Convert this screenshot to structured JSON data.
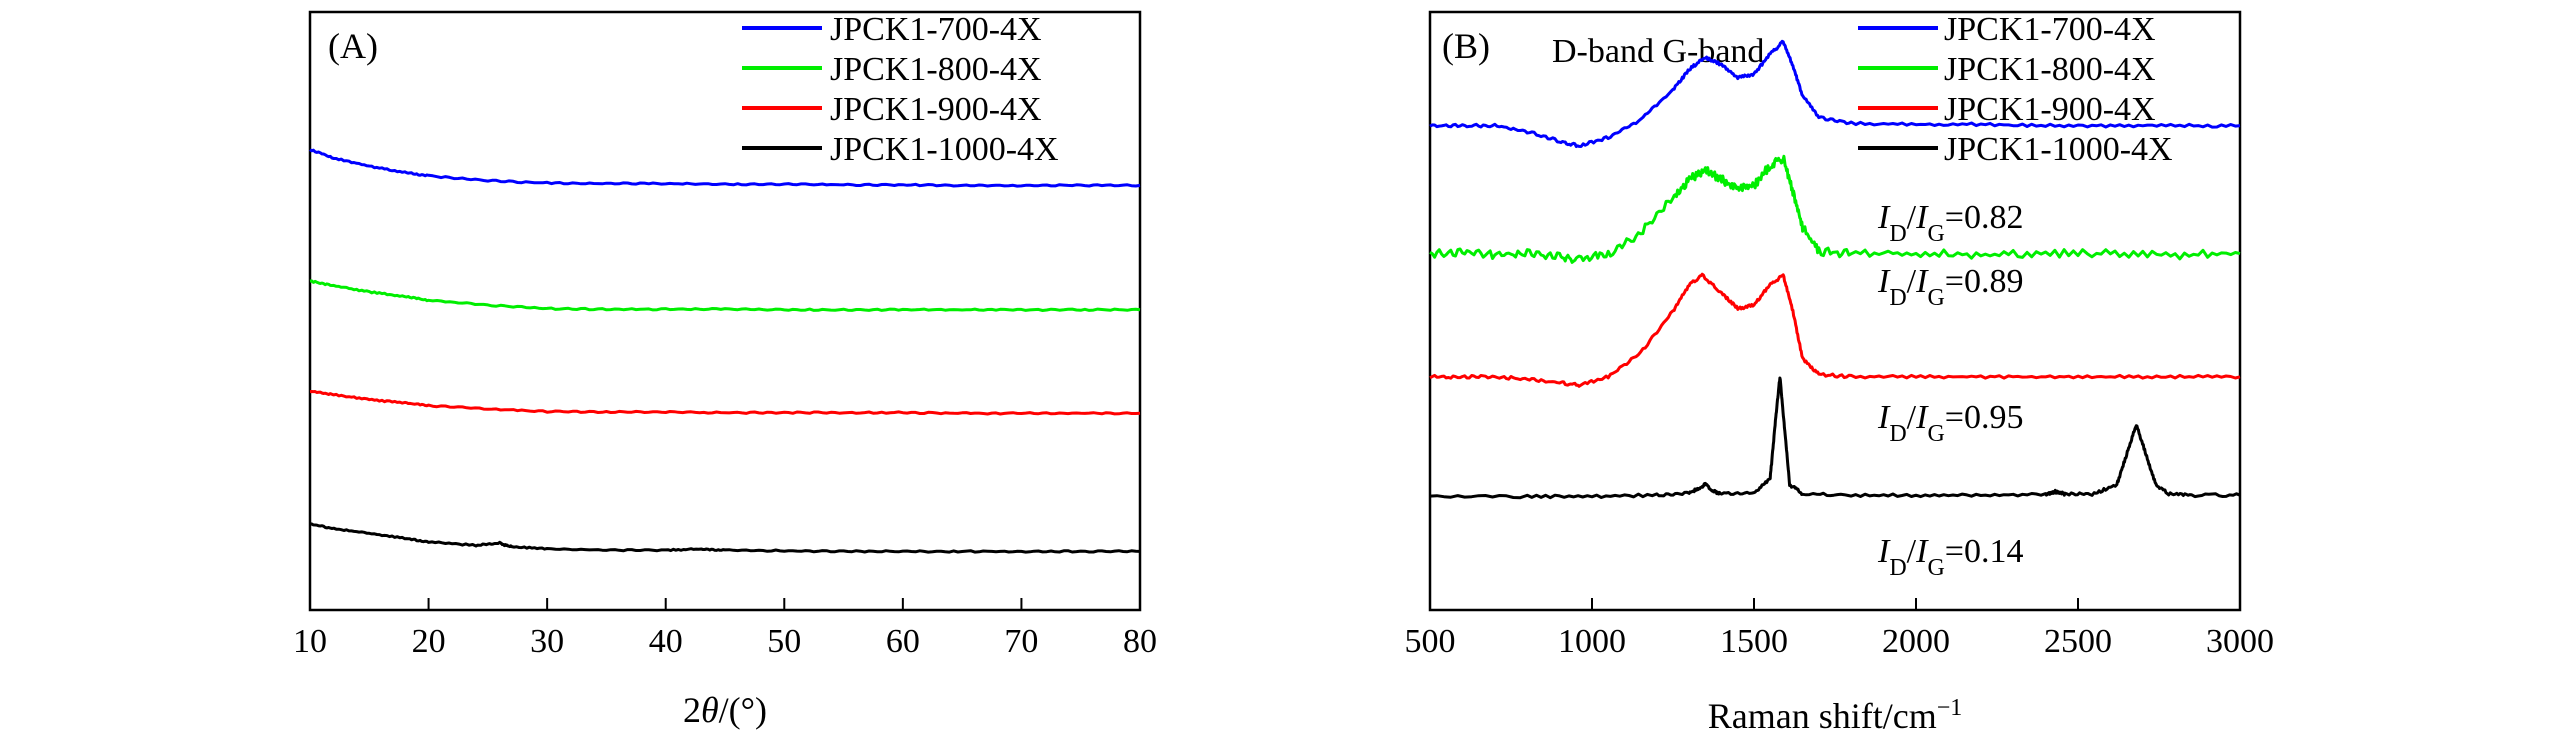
{
  "chart_data": [
    {
      "type": "line",
      "panel_label": "(A)",
      "xlabel_parts": [
        "2",
        "θ",
        "/(°)"
      ],
      "xlim": [
        10,
        80
      ],
      "xticks": [
        10,
        20,
        30,
        40,
        50,
        60,
        70,
        80
      ],
      "legend_position": "top-right",
      "series": [
        {
          "name": "JPCK1-700-4X",
          "color": "#0000ff",
          "x": [
            10,
            12,
            15,
            18,
            20,
            25,
            30,
            35,
            40,
            45,
            50,
            55,
            60,
            65,
            70,
            75,
            80
          ],
          "y": [
            3.85,
            3.78,
            3.71,
            3.66,
            3.63,
            3.59,
            3.57,
            3.565,
            3.565,
            3.56,
            3.56,
            3.555,
            3.555,
            3.55,
            3.55,
            3.55,
            3.55
          ]
        },
        {
          "name": "JPCK1-800-4X",
          "color": "#00ee00",
          "x": [
            10,
            12,
            15,
            18,
            20,
            25,
            30,
            35,
            40,
            45,
            50,
            55,
            60,
            65,
            70,
            75,
            80
          ],
          "y": [
            2.75,
            2.71,
            2.66,
            2.62,
            2.59,
            2.55,
            2.52,
            2.515,
            2.515,
            2.515,
            2.51,
            2.51,
            2.51,
            2.51,
            2.51,
            2.51,
            2.51
          ]
        },
        {
          "name": "JPCK1-900-4X",
          "color": "#ff0000",
          "x": [
            10,
            12,
            15,
            18,
            20,
            25,
            30,
            35,
            40,
            45,
            50,
            55,
            60,
            65,
            70,
            75,
            80
          ],
          "y": [
            1.83,
            1.8,
            1.76,
            1.73,
            1.71,
            1.68,
            1.66,
            1.655,
            1.655,
            1.65,
            1.65,
            1.65,
            1.65,
            1.645,
            1.645,
            1.645,
            1.645
          ]
        },
        {
          "name": "JPCK1-1000-4X",
          "color": "#000000",
          "x": [
            10,
            12,
            15,
            18,
            20,
            24,
            26,
            26.5,
            27,
            30,
            35,
            40,
            43,
            45,
            50,
            55,
            60,
            65,
            70,
            75,
            80
          ],
          "y": [
            0.72,
            0.68,
            0.64,
            0.6,
            0.57,
            0.54,
            0.56,
            0.54,
            0.53,
            0.51,
            0.5,
            0.5,
            0.51,
            0.5,
            0.495,
            0.49,
            0.49,
            0.49,
            0.49,
            0.49,
            0.49
          ]
        }
      ],
      "ylim": [
        0,
        5.0
      ]
    },
    {
      "type": "line",
      "panel_label": "(B)",
      "xlabel": "Raman shift/cm",
      "xlabel_sup": "−1",
      "xlim": [
        500,
        3000
      ],
      "xticks": [
        500,
        1000,
        1500,
        2000,
        2500,
        3000
      ],
      "legend_position": "top-right",
      "band_labels": "D-band G-band",
      "annotations": [
        {
          "I": "I",
          "D": "D",
          "slash": "/",
          "G": "G",
          "value": "=0.82"
        },
        {
          "I": "I",
          "D": "D",
          "slash": "/",
          "G": "G",
          "value": "=0.89"
        },
        {
          "I": "I",
          "D": "D",
          "slash": "/",
          "G": "G",
          "value": "=0.95"
        },
        {
          "I": "I",
          "D": "D",
          "slash": "/",
          "G": "G",
          "value": "=0.14"
        }
      ],
      "series": [
        {
          "name": "JPCK1-700-4X",
          "color": "#0000ff",
          "x": [
            500,
            600,
            700,
            800,
            900,
            960,
            1050,
            1150,
            1250,
            1300,
            1350,
            1400,
            1450,
            1500,
            1550,
            1590,
            1620,
            1650,
            1700,
            1800,
            2000,
            2200,
            2400,
            2600,
            2800,
            3000
          ],
          "y": [
            4.05,
            4.05,
            4.05,
            4.0,
            3.92,
            3.88,
            3.95,
            4.1,
            4.35,
            4.52,
            4.62,
            4.56,
            4.45,
            4.48,
            4.65,
            4.75,
            4.55,
            4.3,
            4.12,
            4.07,
            4.06,
            4.06,
            4.05,
            4.05,
            4.05,
            4.05
          ]
        },
        {
          "name": "JPCK1-800-4X",
          "color": "#00ee00",
          "x": [
            500,
            600,
            700,
            800,
            900,
            960,
            1050,
            1150,
            1250,
            1300,
            1350,
            1400,
            1450,
            1500,
            1550,
            1590,
            1620,
            1650,
            1700,
            1800,
            2000,
            2200,
            2400,
            2600,
            2800,
            3000
          ],
          "y": [
            2.98,
            2.99,
            2.97,
            2.98,
            2.96,
            2.93,
            2.98,
            3.15,
            3.45,
            3.6,
            3.68,
            3.6,
            3.52,
            3.55,
            3.72,
            3.78,
            3.5,
            3.2,
            3.0,
            2.98,
            2.98,
            2.97,
            2.98,
            2.98,
            2.97,
            2.98
          ]
        },
        {
          "name": "JPCK1-900-4X",
          "color": "#ff0000",
          "x": [
            500,
            600,
            700,
            800,
            900,
            960,
            1050,
            1150,
            1250,
            1300,
            1340,
            1400,
            1450,
            1500,
            1550,
            1590,
            1620,
            1650,
            1700,
            1800,
            2000,
            2200,
            2400,
            2600,
            2800,
            3000
          ],
          "y": [
            1.95,
            1.95,
            1.95,
            1.93,
            1.9,
            1.88,
            1.95,
            2.15,
            2.5,
            2.72,
            2.8,
            2.65,
            2.52,
            2.55,
            2.72,
            2.8,
            2.5,
            2.1,
            1.97,
            1.95,
            1.95,
            1.95,
            1.95,
            1.95,
            1.95,
            1.95
          ]
        },
        {
          "name": "JPCK1-1000-4X",
          "color": "#000000",
          "x": [
            500,
            800,
            1000,
            1200,
            1300,
            1330,
            1350,
            1370,
            1400,
            1500,
            1550,
            1565,
            1580,
            1595,
            1610,
            1650,
            1800,
            2000,
            2200,
            2400,
            2430,
            2460,
            2550,
            2620,
            2650,
            2680,
            2710,
            2740,
            2780,
            2850,
            3000
          ],
          "y": [
            0.95,
            0.95,
            0.95,
            0.96,
            0.98,
            1.02,
            1.05,
            1.0,
            0.97,
            0.98,
            1.1,
            1.55,
            1.95,
            1.5,
            1.05,
            0.97,
            0.96,
            0.96,
            0.96,
            0.97,
            0.99,
            0.97,
            0.97,
            1.05,
            1.3,
            1.55,
            1.3,
            1.05,
            0.97,
            0.96,
            0.96
          ]
        }
      ],
      "ylim": [
        0,
        5.0
      ]
    }
  ]
}
